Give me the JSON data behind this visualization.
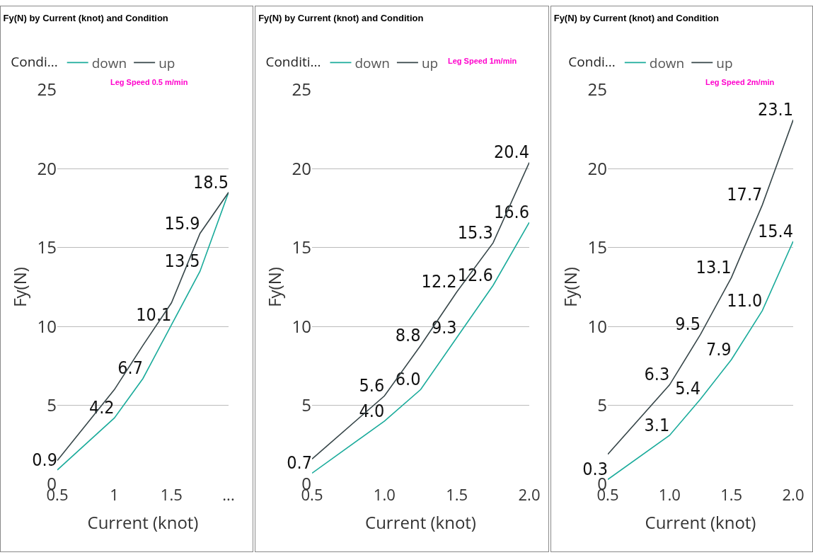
{
  "chart_data": [
    {
      "type": "line",
      "title": "Fy(N) by Current (knot) and Condition",
      "xlabel": "Current (knot)",
      "ylabel": "Fy(N)",
      "legend_title": "Condi...",
      "legend": "top left",
      "grid": "y",
      "marker": "none",
      "line_style": "solid",
      "annotations": [
        "Leg Speed 0.5 m/min"
      ],
      "x": [
        0.5,
        1,
        1.25,
        1.5,
        1.75,
        2
      ],
      "xlim": [
        0.5,
        2
      ],
      "xticks": [
        0.5,
        1,
        1.5,
        {
          "value": 2,
          "label": "..."
        }
      ],
      "ylim": [
        0,
        25
      ],
      "yticks": [
        0,
        5,
        10,
        15,
        20,
        25
      ],
      "series": [
        {
          "name": "down",
          "color": "#1aab9b",
          "values": [
            0.9,
            4.2,
            6.7,
            10.1,
            13.5,
            18.5
          ],
          "value_labels": [
            "0.9",
            "4.2",
            "6.7",
            "10.1",
            "13.5",
            null
          ]
        },
        {
          "name": "up",
          "color": "#374649",
          "values": [
            1.5,
            6.0,
            8.8,
            11.5,
            15.9,
            18.5
          ],
          "value_labels": [
            null,
            null,
            null,
            null,
            "15.9",
            "18.5"
          ]
        }
      ]
    },
    {
      "type": "line",
      "title": "Fy(N) by Current (knot) and Condition",
      "xlabel": "Current (knot)",
      "ylabel": "Fy(N)",
      "legend_title": "Conditi...",
      "legend": "top left",
      "grid": "y",
      "marker": "none",
      "line_style": "solid",
      "annotations": [
        "Leg Speed 1m/min"
      ],
      "x": [
        0.5,
        1,
        1.25,
        1.5,
        1.75,
        2
      ],
      "xlim": [
        0.5,
        2
      ],
      "xticks": [
        {
          "value": 0.5,
          "label": "0.5"
        },
        {
          "value": 1,
          "label": "1.0"
        },
        {
          "value": 1.5,
          "label": "1.5"
        },
        {
          "value": 2,
          "label": "2.0"
        }
      ],
      "ylim": [
        0,
        25
      ],
      "yticks": [
        0,
        5,
        10,
        15,
        20,
        25
      ],
      "series": [
        {
          "name": "down",
          "color": "#1aab9b",
          "values": [
            0.7,
            4.0,
            6.0,
            9.3,
            12.6,
            16.6
          ],
          "value_labels": [
            "0.7",
            "4.0",
            "6.0",
            "9.3",
            "12.6",
            "16.6"
          ]
        },
        {
          "name": "up",
          "color": "#374649",
          "values": [
            1.6,
            5.6,
            8.8,
            12.2,
            15.3,
            20.4
          ],
          "value_labels": [
            null,
            "5.6",
            "8.8",
            "12.2",
            "15.3",
            "20.4"
          ]
        }
      ]
    },
    {
      "type": "line",
      "title": "Fy(N) by Current (knot) and Condition",
      "xlabel": "Current (knot)",
      "ylabel": "Fy(N)",
      "legend_title": "Condi...",
      "legend": "top left",
      "grid": "y",
      "marker": "none",
      "line_style": "solid",
      "annotations": [
        "Leg Speed 2m/min"
      ],
      "x": [
        0.5,
        1,
        1.25,
        1.5,
        1.75,
        2
      ],
      "xlim": [
        0.5,
        2
      ],
      "xticks": [
        {
          "value": 0.5,
          "label": "0.5"
        },
        {
          "value": 1,
          "label": "1.0"
        },
        {
          "value": 1.5,
          "label": "1.5"
        },
        {
          "value": 2,
          "label": "2.0"
        }
      ],
      "ylim": [
        0,
        25
      ],
      "yticks": [
        0,
        5,
        10,
        15,
        20,
        25
      ],
      "series": [
        {
          "name": "down",
          "color": "#1aab9b",
          "values": [
            0.3,
            3.1,
            5.4,
            7.9,
            11.0,
            15.4
          ],
          "value_labels": [
            "0.3",
            "3.1",
            "5.4",
            "7.9",
            "11.0",
            "15.4"
          ]
        },
        {
          "name": "up",
          "color": "#374649",
          "values": [
            1.9,
            6.3,
            9.5,
            13.1,
            17.7,
            23.1
          ],
          "value_labels": [
            null,
            "6.3",
            "9.5",
            "13.1",
            "17.7",
            "23.1"
          ]
        }
      ]
    }
  ]
}
